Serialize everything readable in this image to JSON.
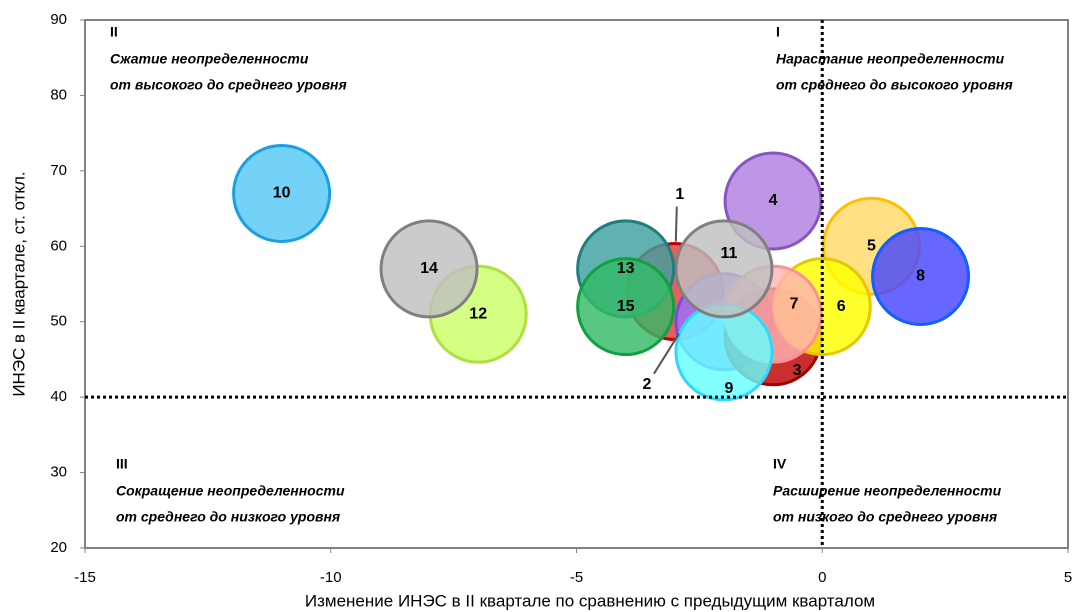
{
  "chart_data": {
    "type": "bubble",
    "x_label": "Изменение  ИНЭС в II квартале по сравнению с предыдущим кварталом",
    "y_label": "ИНЭС в II  квартале, ст. откл.",
    "xlim": [
      -15,
      5
    ],
    "xticks": [
      -15,
      -10,
      -5,
      0,
      5
    ],
    "ylim": [
      20,
      90
    ],
    "yticks": [
      20,
      30,
      40,
      50,
      60,
      70,
      80,
      90
    ],
    "quadrant_lines": {
      "x": 0,
      "y": 40
    },
    "labels": [
      "1",
      "2",
      "3",
      "4",
      "5",
      "6",
      "7",
      "8",
      "9",
      "10",
      "11",
      "12",
      "13",
      "14",
      "15"
    ],
    "x": [
      -3,
      -2,
      -1,
      -1,
      1,
      0,
      -1,
      2,
      -2,
      -11,
      -2,
      -7,
      -4,
      -8,
      -4
    ],
    "values": [
      54,
      50,
      48,
      66,
      60,
      52,
      51,
      56,
      46,
      67,
      57,
      51,
      57,
      57,
      52
    ],
    "colors": [
      "#e03a3a",
      "#9a70ff",
      "#c00000",
      "#b07fe0",
      "#ffd966",
      "#ffff00",
      "#ffb3b3",
      "#4646ff",
      "#66ffff",
      "#55c8f5",
      "#c0c0c0",
      "#ccff66",
      "#40a0a0",
      "#c0c0c0",
      "#33bb66"
    ],
    "strokes": [
      "#c00000",
      "#7050e0",
      "#a00000",
      "#8a55c0",
      "#ffc000",
      "#e6c800",
      "#ff9090",
      "#1060ff",
      "#30d8ff",
      "#1aa0e0",
      "#808080",
      "#b0e040",
      "#1f7f7f",
      "#808080",
      "#10a040"
    ],
    "annotations": [
      "II",
      "Сжатие неопределенности",
      "от высокого до среднего уровня",
      "I",
      "Нарастание неопределенности",
      "от среднего до высокого уровня",
      "III",
      "Сокращение неопределенности",
      "от среднего до низкого уровня",
      "IV",
      "Расширение  неопределенности",
      "от низкого до среднего уровня"
    ]
  }
}
